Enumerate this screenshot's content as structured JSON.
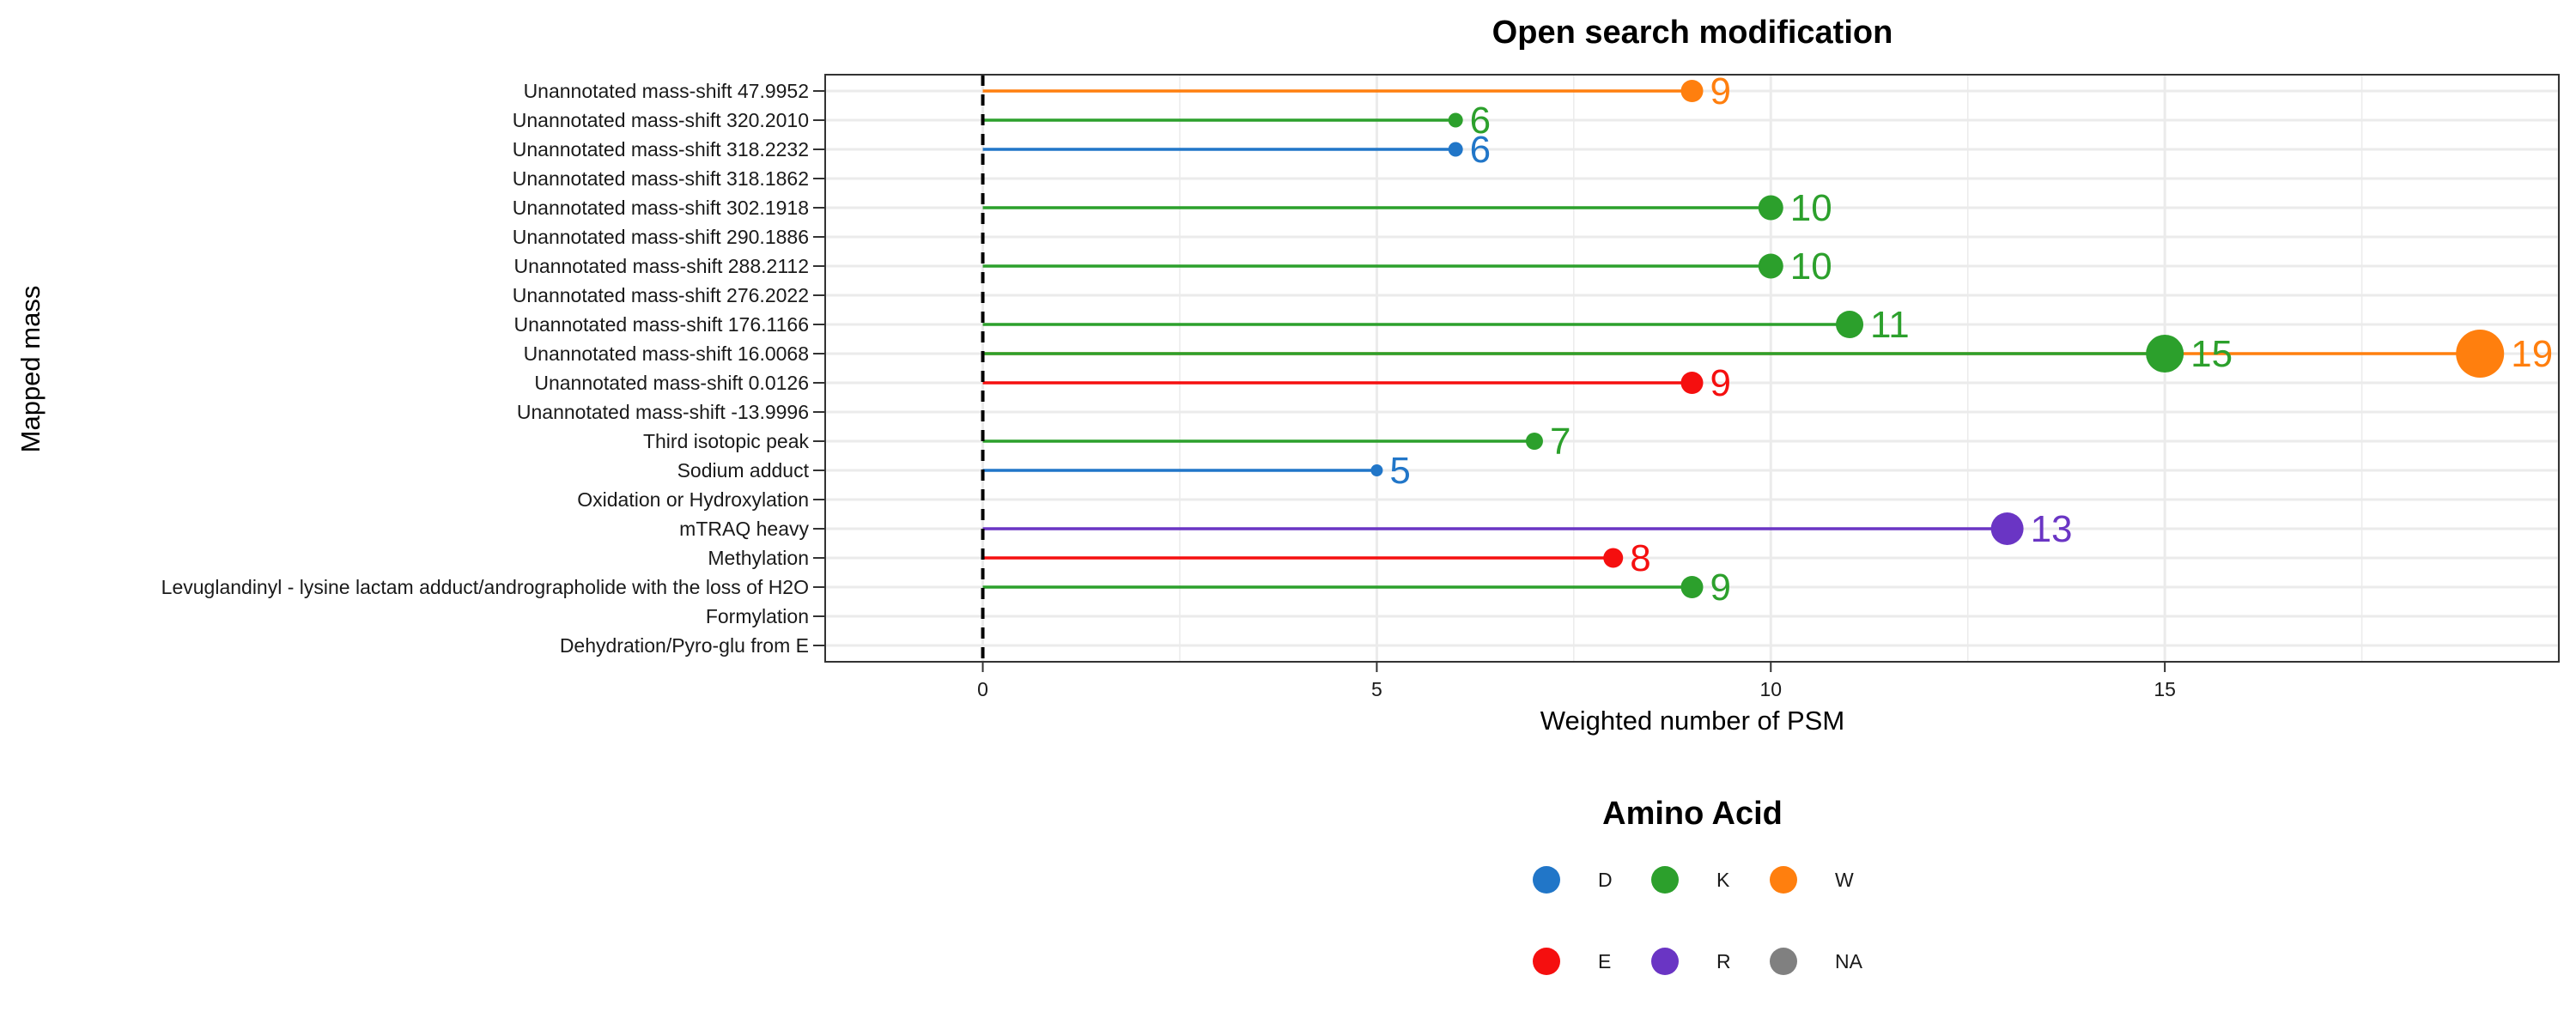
{
  "chart_data": {
    "type": "lollipop",
    "title": "Open search modification",
    "xlabel": "Weighted number of PSM",
    "ylabel": "Mapped mass",
    "xlim": [
      -2,
      20
    ],
    "xticks": [
      0,
      5,
      10,
      15
    ],
    "reference_line_x": 0,
    "grid": true,
    "categories": [
      "Unannotated mass-shift 47.9952",
      "Unannotated mass-shift 320.2010",
      "Unannotated mass-shift 318.2232",
      "Unannotated mass-shift 318.1862",
      "Unannotated mass-shift 302.1918",
      "Unannotated mass-shift 290.1886",
      "Unannotated mass-shift 288.2112",
      "Unannotated mass-shift 276.2022",
      "Unannotated mass-shift 176.1166",
      "Unannotated mass-shift 16.0068",
      "Unannotated mass-shift 0.0126",
      "Unannotated mass-shift -13.9996",
      "Third isotopic peak",
      "Sodium adduct",
      "Oxidation or Hydroxylation",
      "mTRAQ heavy",
      "Methylation",
      "Levuglandinyl - lysine lactam adduct/andrographolide with the loss of H2O",
      "Formylation",
      "Dehydration/Pyro-glu from E"
    ],
    "points": [
      {
        "category": "Unannotated mass-shift 47.9952",
        "amino_acid": "W",
        "value": 9,
        "label": "9"
      },
      {
        "category": "Unannotated mass-shift 320.2010",
        "amino_acid": "K",
        "value": 6,
        "label": "6"
      },
      {
        "category": "Unannotated mass-shift 318.2232",
        "amino_acid": "D",
        "value": 6,
        "label": "6"
      },
      {
        "category": "Unannotated mass-shift 302.1918",
        "amino_acid": "K",
        "value": 10,
        "label": "10"
      },
      {
        "category": "Unannotated mass-shift 288.2112",
        "amino_acid": "K",
        "value": 10,
        "label": "10"
      },
      {
        "category": "Unannotated mass-shift 176.1166",
        "amino_acid": "K",
        "value": 11,
        "label": "11"
      },
      {
        "category": "Unannotated mass-shift 16.0068",
        "amino_acid": "W",
        "value": 19,
        "label": "19"
      },
      {
        "category": "Unannotated mass-shift 16.0068",
        "amino_acid": "K",
        "value": 15,
        "label": "15"
      },
      {
        "category": "Unannotated mass-shift 0.0126",
        "amino_acid": "E",
        "value": 9,
        "label": "9"
      },
      {
        "category": "Third isotopic peak",
        "amino_acid": "K",
        "value": 7,
        "label": "7"
      },
      {
        "category": "Sodium adduct",
        "amino_acid": "D",
        "value": 5,
        "label": "5"
      },
      {
        "category": "mTRAQ heavy",
        "amino_acid": "R",
        "value": 13,
        "label": "13"
      },
      {
        "category": "Methylation",
        "amino_acid": "E",
        "value": 8,
        "label": "8"
      },
      {
        "category": "Levuglandinyl - lysine lactam adduct/andrographolide with the loss of H2O",
        "amino_acid": "K",
        "value": 9,
        "label": "9"
      }
    ],
    "legend": {
      "title": "Amino Acid",
      "position": "bottom",
      "entries": [
        {
          "key": "D",
          "label": "D",
          "color": "#2176c8"
        },
        {
          "key": "K",
          "label": "K",
          "color": "#2ca02c"
        },
        {
          "key": "W",
          "label": "W",
          "color": "#ff7f0e"
        },
        {
          "key": "E",
          "label": "E",
          "color": "#f50f0f"
        },
        {
          "key": "R",
          "label": "R",
          "color": "#6a35c4"
        },
        {
          "key": "NA",
          "label": "NA",
          "color": "#808080"
        }
      ]
    }
  }
}
